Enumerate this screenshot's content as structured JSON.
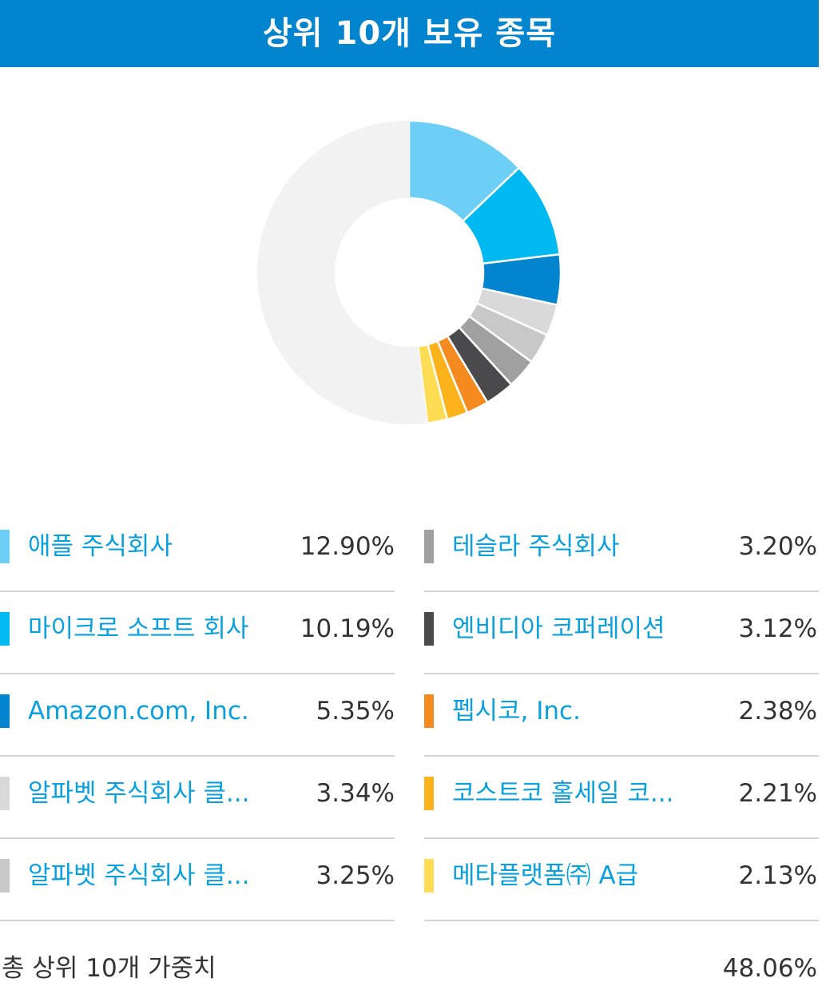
{
  "header": {
    "title": "상위 10개 보유 종목"
  },
  "chart_data": {
    "type": "pie",
    "donut": true,
    "labels": [
      "애플 주식회사",
      "마이크로 소프트 회사",
      "Amazon.com, Inc.",
      "알파벳 주식회사 클...",
      "알파벳 주식회사 클...",
      "테슬라 주식회사",
      "엔비디아 코퍼레이션",
      "펩시코, Inc.",
      "코스트코 홀세일 코...",
      "메타플랫폼㈜ A급"
    ],
    "values": [
      12.9,
      10.19,
      5.35,
      3.34,
      3.25,
      3.2,
      3.12,
      2.38,
      2.21,
      2.13
    ],
    "value_labels": [
      "12.90%",
      "10.19%",
      "5.35%",
      "3.34%",
      "3.25%",
      "3.20%",
      "3.12%",
      "2.38%",
      "2.21%",
      "2.13%"
    ],
    "colors": [
      "#6dcff6",
      "#00b9f0",
      "#0384ce",
      "#d9d9d9",
      "#c8c8c8",
      "#a0a0a0",
      "#4a4a4c",
      "#f58b1f",
      "#fbb21b",
      "#fedd55"
    ],
    "remainder_value": 51.94,
    "remainder_color": "#f2f2f2",
    "total_label": "총 상위 10개 가중치",
    "total_value": "48.06%"
  }
}
